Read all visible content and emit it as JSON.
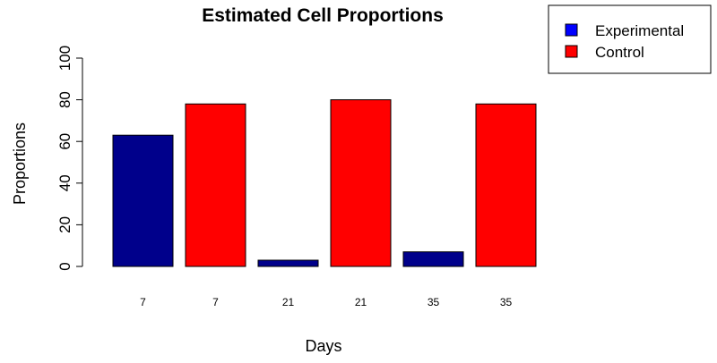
{
  "chart_data": {
    "type": "bar",
    "title": "Estimated Cell Proportions",
    "xlabel": "Days",
    "ylabel": "Proportions",
    "ylim": [
      0,
      100
    ],
    "yticks": [
      0,
      20,
      40,
      60,
      80,
      100
    ],
    "grid": false,
    "legend_position": "top-right",
    "categories": [
      "7",
      "7",
      "21",
      "21",
      "35",
      "35"
    ],
    "values": [
      63,
      78,
      3,
      80,
      7,
      78
    ],
    "bar_series": [
      "Experimental",
      "Control",
      "Experimental",
      "Control",
      "Experimental",
      "Control"
    ],
    "series": [
      {
        "name": "Experimental",
        "color": "#00008B"
      },
      {
        "name": "Control",
        "color": "#FF0000"
      }
    ],
    "legend": [
      {
        "label": "Experimental",
        "color": "#0000FF"
      },
      {
        "label": "Control",
        "color": "#FF0000"
      }
    ]
  }
}
